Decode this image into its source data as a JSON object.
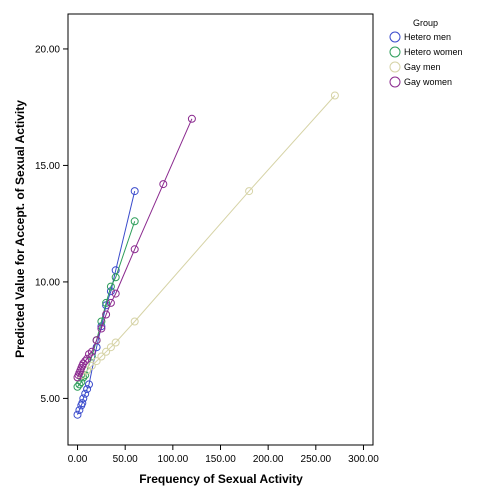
{
  "chart_data": {
    "type": "scatter",
    "xlabel": "Frequency of Sexual Activity",
    "ylabel": "Predicted Value for Accept. of Sexual Activity",
    "xlim": [
      -10,
      310
    ],
    "ylim": [
      3.0,
      21.5
    ],
    "xticks": [
      "0.00",
      "50.00",
      "100.00",
      "150.00",
      "200.00",
      "250.00",
      "300.00"
    ],
    "yticks": [
      "5.00",
      "10.00",
      "15.00",
      "20.00"
    ],
    "grid": false,
    "legend_title": "Group",
    "legend_placement": "right",
    "series": [
      {
        "name": "Hetero men",
        "color": "#3b4ccc",
        "x": [
          0,
          2,
          4,
          5,
          6,
          8,
          10,
          12,
          20,
          25,
          30,
          35,
          40,
          60
        ],
        "y": [
          4.3,
          4.5,
          4.7,
          4.8,
          5.0,
          5.2,
          5.4,
          5.6,
          7.2,
          8.1,
          9.0,
          9.6,
          10.5,
          13.9
        ]
      },
      {
        "name": "Hetero women",
        "color": "#2e9e5b",
        "x": [
          0,
          2,
          4,
          6,
          8,
          10,
          15,
          20,
          25,
          30,
          35,
          40,
          60
        ],
        "y": [
          5.5,
          5.6,
          5.7,
          5.9,
          6.0,
          6.2,
          6.8,
          7.5,
          8.3,
          9.1,
          9.8,
          10.2,
          12.6
        ]
      },
      {
        "name": "Gay men",
        "color": "#d6d3a6",
        "x": [
          0,
          5,
          10,
          15,
          20,
          25,
          30,
          35,
          40,
          60,
          180,
          270
        ],
        "y": [
          5.9,
          6.0,
          6.2,
          6.4,
          6.6,
          6.8,
          7.0,
          7.2,
          7.4,
          8.3,
          13.9,
          18.0
        ]
      },
      {
        "name": "Gay women",
        "color": "#8b2a8f",
        "x": [
          0,
          1,
          2,
          3,
          4,
          5,
          6,
          8,
          10,
          12,
          15,
          20,
          25,
          30,
          35,
          40,
          60,
          90,
          120
        ],
        "y": [
          5.9,
          6.0,
          6.1,
          6.2,
          6.3,
          6.4,
          6.5,
          6.6,
          6.7,
          6.9,
          7.0,
          7.5,
          8.0,
          8.6,
          9.1,
          9.5,
          11.4,
          14.2,
          17.0
        ]
      }
    ]
  }
}
